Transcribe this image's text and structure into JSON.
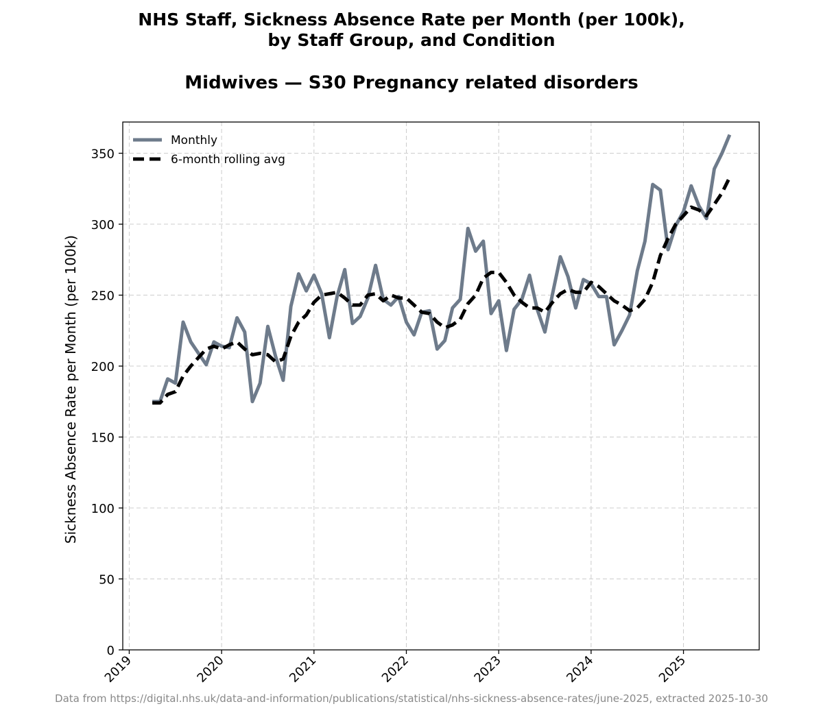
{
  "title_line1": "NHS Staff, Sickness Absence Rate per Month (per 100k),",
  "title_line2": "by Staff Group, and Condition",
  "subtitle": "Midwives — S30 Pregnancy related disorders",
  "footer": "Data from https://digital.nhs.uk/data-and-information/publications/statistical/nhs-sickness-absence-rates/june-2025, extracted 2025-10-30",
  "chart_data": {
    "type": "line",
    "ylabel": "Sickness Absence Rate per Month (per 100k)",
    "xlabel": "",
    "ylim": [
      0,
      372
    ],
    "xlim": [
      2018.93,
      2025.82
    ],
    "grid": true,
    "legend_position": "upper-left",
    "x_ticks": [
      "2019",
      "2020",
      "2021",
      "2022",
      "2023",
      "2024",
      "2025"
    ],
    "y_ticks": [
      "0",
      "50",
      "100",
      "150",
      "200",
      "250",
      "300",
      "350"
    ],
    "start": "2019-04",
    "colors": {
      "monthly": "#6e7b8b",
      "rolling": "#000000"
    },
    "series": [
      {
        "name": "Monthly",
        "style": "solid",
        "values": [
          175,
          175,
          191,
          188,
          231,
          217,
          209,
          201,
          217,
          214,
          213,
          234,
          224,
          175,
          188,
          228,
          207,
          190,
          242,
          265,
          253,
          264,
          251,
          220,
          249,
          268,
          230,
          235,
          248,
          271,
          247,
          243,
          249,
          231,
          222,
          238,
          239,
          212,
          218,
          241,
          247,
          297,
          281,
          288,
          237,
          246,
          211,
          240,
          247,
          264,
          240,
          224,
          251,
          277,
          263,
          241,
          261,
          258,
          249,
          249,
          215,
          225,
          236,
          267,
          288,
          328,
          324,
          282,
          299,
          309,
          327,
          313,
          304,
          339,
          350,
          363
        ]
      },
      {
        "name": "6-month rolling avg",
        "style": "dashed",
        "values": [
          174,
          174,
          180,
          182,
          193,
          200,
          206,
          212,
          214,
          212,
          215,
          217,
          212,
          208,
          209,
          208,
          203,
          205,
          221,
          231,
          236,
          245,
          250,
          251,
          252,
          248,
          243,
          243,
          250,
          251,
          246,
          250,
          248,
          248,
          243,
          238,
          237,
          231,
          227,
          229,
          233,
          244,
          250,
          262,
          266,
          266,
          259,
          250,
          245,
          241,
          241,
          238,
          245,
          251,
          254,
          252,
          252,
          259,
          256,
          251,
          246,
          243,
          239,
          241,
          247,
          259,
          278,
          290,
          300,
          306,
          312,
          310,
          306,
          314,
          322,
          333
        ]
      }
    ]
  }
}
